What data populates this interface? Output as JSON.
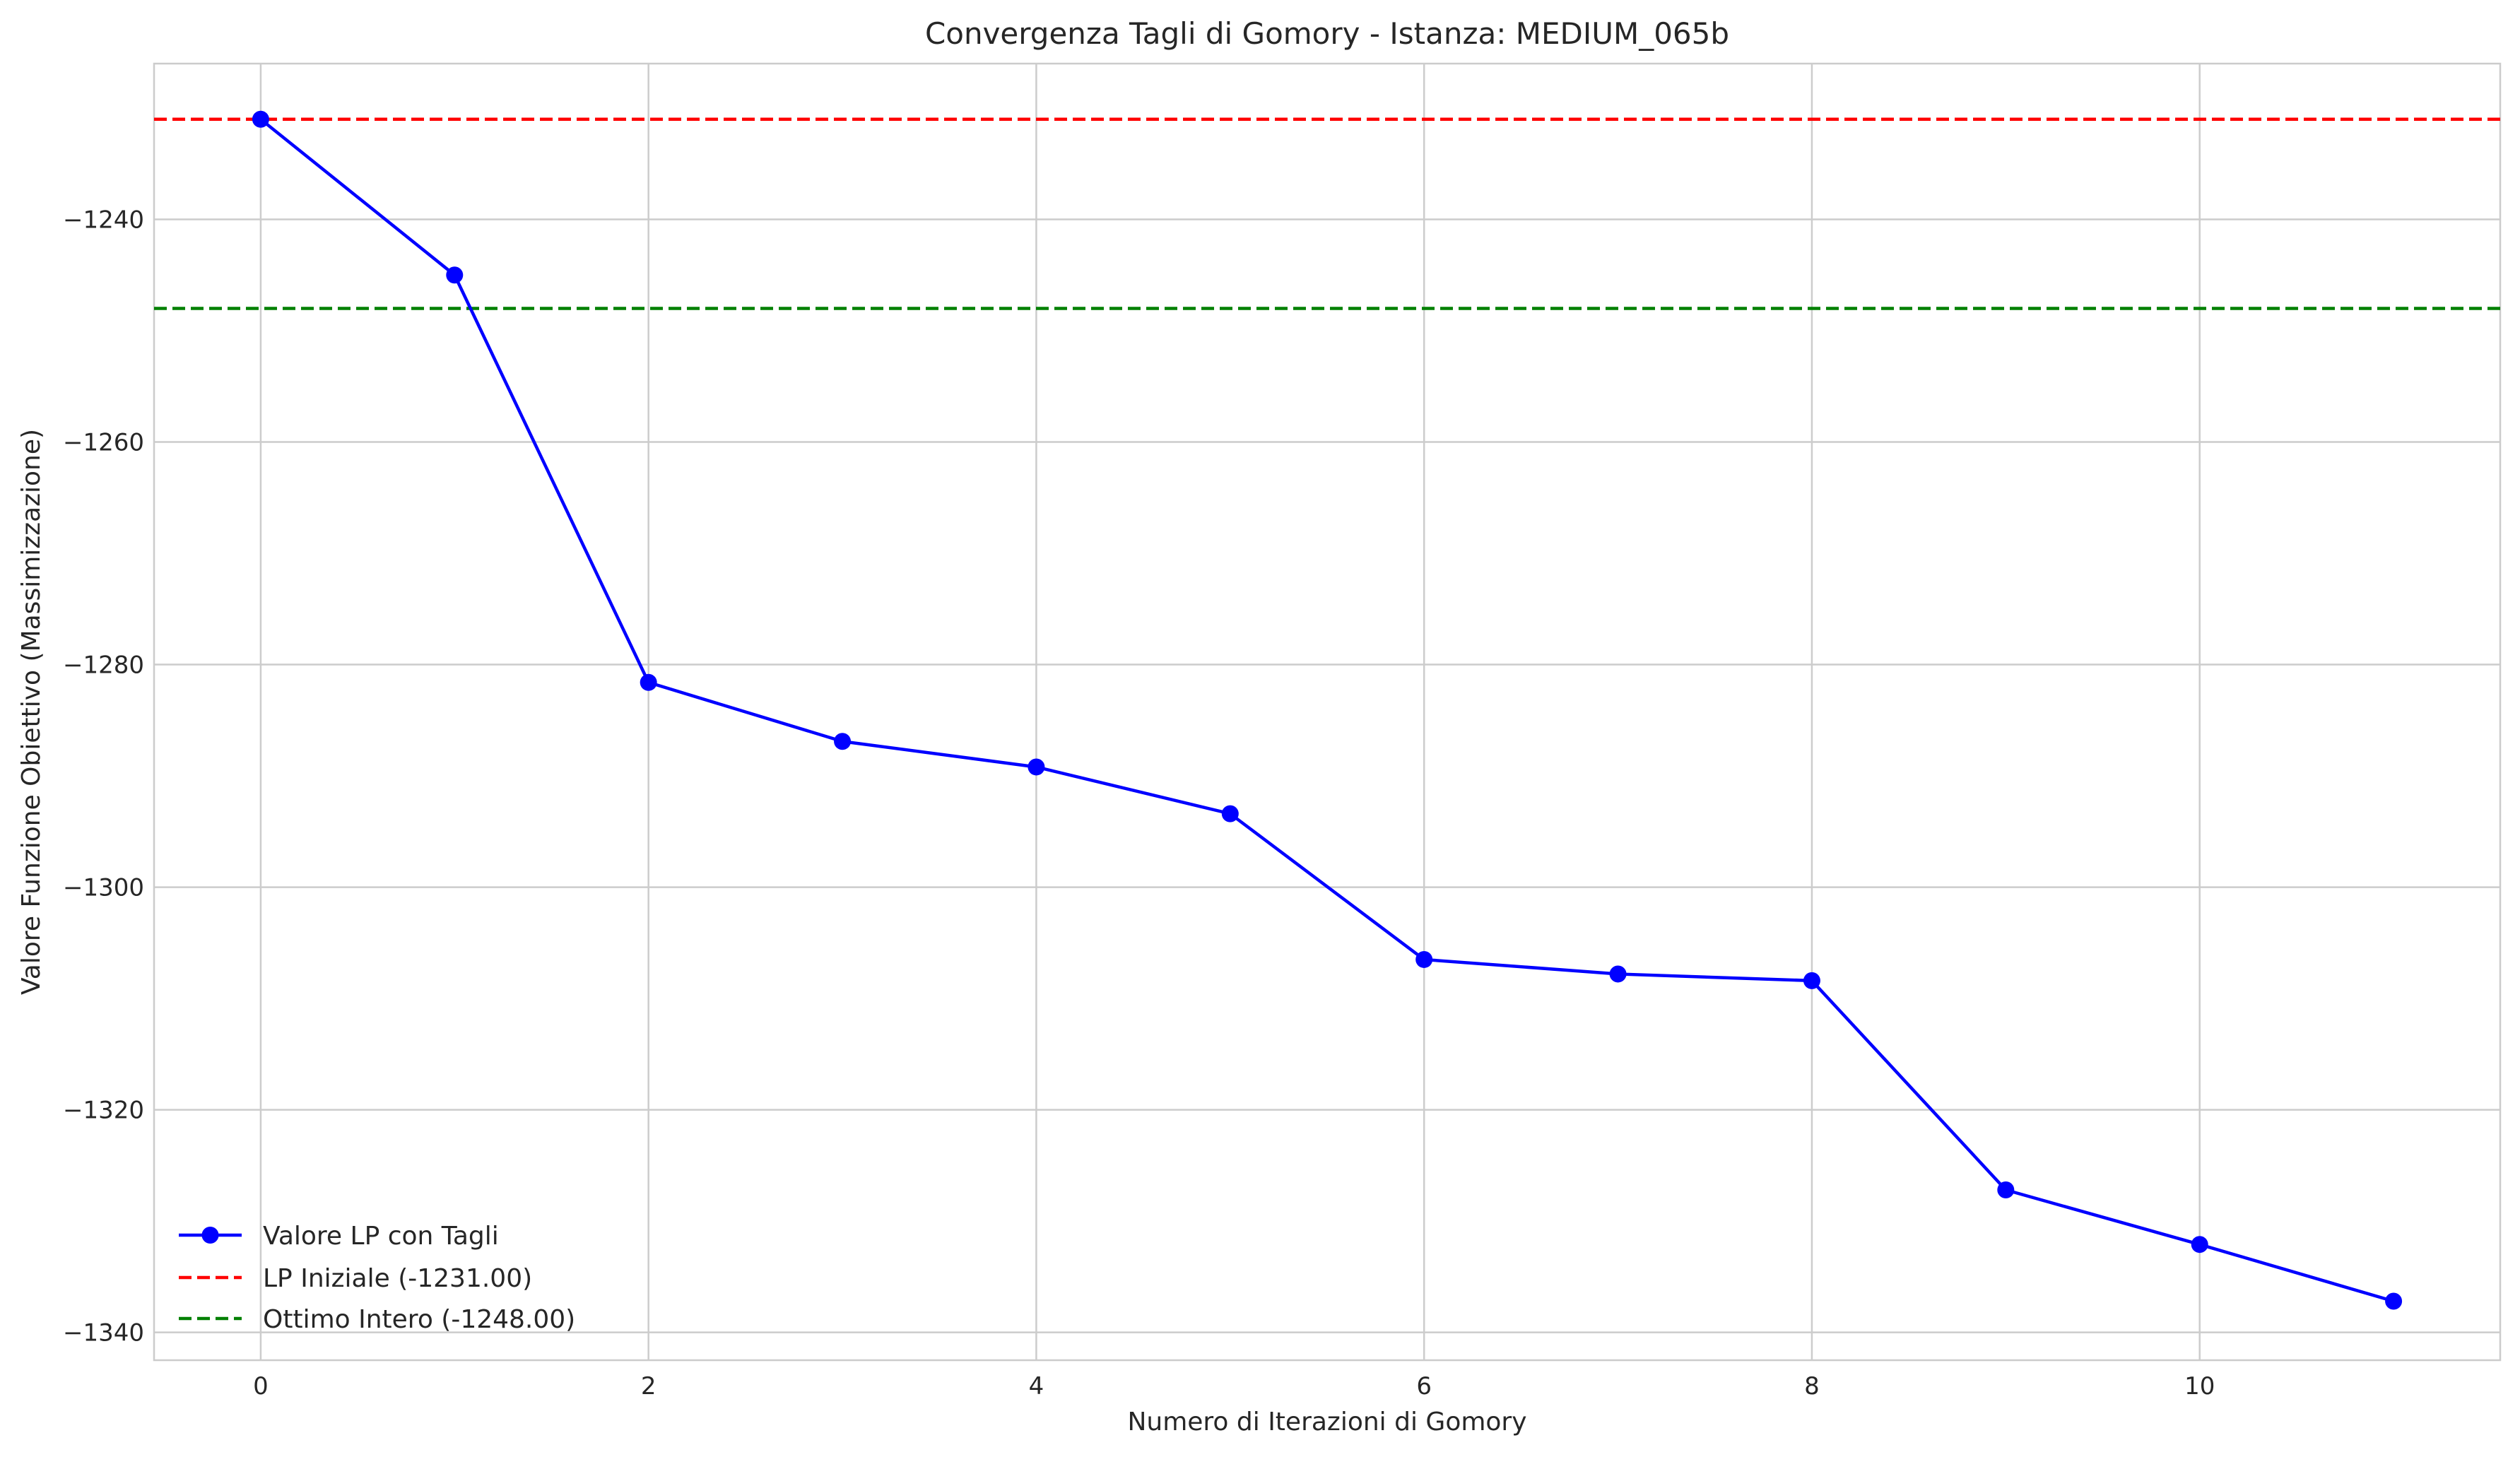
{
  "chart_data": {
    "type": "line",
    "title": "Convergenza Tagli di Gomory - Istanza: MEDIUM_065b",
    "xlabel": "Numero di Iterazioni di Gomory",
    "ylabel": "Valore Funzione Obiettivo (Massimizzazione)",
    "xlim": [
      -0.55,
      11.55
    ],
    "ylim": [
      -1342.5,
      -1226.0
    ],
    "xticks": [
      0,
      2,
      4,
      6,
      8,
      10
    ],
    "yticks": [
      -1240,
      -1260,
      -1280,
      -1300,
      -1320,
      -1340
    ],
    "xtick_labels": [
      "0",
      "2",
      "4",
      "6",
      "8",
      "10"
    ],
    "ytick_labels": [
      "−1240",
      "−1260",
      "−1280",
      "−1300",
      "−1320",
      "−1340"
    ],
    "grid": true,
    "legend_position": "lower-left",
    "series": [
      {
        "name": "Valore LP con Tagli",
        "style": "solid-line-with-markers",
        "color": "#0000ff",
        "x": [
          0,
          1,
          2,
          3,
          4,
          5,
          6,
          7,
          8,
          9,
          10,
          11
        ],
        "y": [
          -1231.0,
          -1245.0,
          -1281.6,
          -1286.9,
          -1289.2,
          -1293.4,
          -1306.5,
          -1307.8,
          -1308.4,
          -1327.2,
          -1332.1,
          -1337.2
        ]
      }
    ],
    "reference_lines": [
      {
        "name": "LP Iniziale (-1231.00)",
        "y": -1231.0,
        "color": "#ff0000",
        "style": "dashed"
      },
      {
        "name": "Ottimo Intero (-1248.00)",
        "y": -1248.0,
        "color": "#008000",
        "style": "dashed"
      }
    ]
  }
}
